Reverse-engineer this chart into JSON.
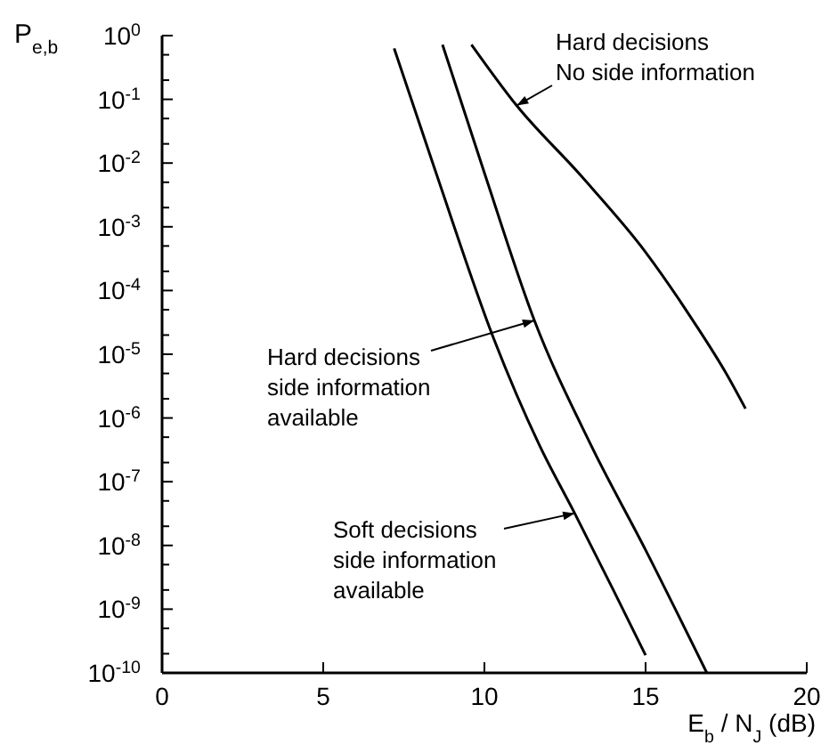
{
  "chart_data": {
    "type": "line",
    "log": "y",
    "xlabel": "E$_{b}$ / N$_{J}$ (dB)",
    "ylabel": "P$_{e,b}$",
    "xlim": [
      0,
      20
    ],
    "ylim": [
      1e-10,
      1
    ],
    "xticks": [
      0,
      5,
      10,
      15,
      20
    ],
    "yticks": [
      {
        "value": 1,
        "label": "10$^{0}$"
      },
      {
        "value": 0.1,
        "label": "10$^{-1}$"
      },
      {
        "value": 0.01,
        "label": "10$^{-2}$"
      },
      {
        "value": 0.001,
        "label": "10$^{-3}$"
      },
      {
        "value": 0.0001,
        "label": "10$^{-4}$"
      },
      {
        "value": 1e-05,
        "label": "10$^{-5}$"
      },
      {
        "value": 1e-06,
        "label": "10$^{-6}$"
      },
      {
        "value": 1e-07,
        "label": "10$^{-7}$"
      },
      {
        "value": 1e-08,
        "label": "10$^{-8}$"
      },
      {
        "value": 1e-09,
        "label": "10$^{-9}$"
      },
      {
        "value": 1e-10,
        "label": "10$^{-10}$"
      },
      {
        "value": 0.5,
        "label": null
      },
      {
        "value": 0.2,
        "label": null
      },
      {
        "value": 0.05,
        "label": null
      },
      {
        "value": 0.02,
        "label": null
      },
      {
        "value": 0.005,
        "label": null
      },
      {
        "value": 0.002,
        "label": null
      },
      {
        "value": 0.0005,
        "label": null
      },
      {
        "value": 0.0002,
        "label": null
      },
      {
        "value": 5e-05,
        "label": null
      },
      {
        "value": 2e-05,
        "label": null
      },
      {
        "value": 5e-06,
        "label": null
      },
      {
        "value": 2e-06,
        "label": null
      },
      {
        "value": 5e-07,
        "label": null
      },
      {
        "value": 2e-07,
        "label": null
      },
      {
        "value": 5e-08,
        "label": null
      },
      {
        "value": 2e-08,
        "label": null
      },
      {
        "value": 5e-09,
        "label": null
      },
      {
        "value": 2e-09,
        "label": null
      },
      {
        "value": 5e-10,
        "label": null
      },
      {
        "value": 2e-10,
        "label": null
      }
    ],
    "grid": false,
    "marker": "none",
    "line_style": "solid",
    "annotations": [
      {
        "text": "Soft decisions\nside information\navailable",
        "x": 12.8,
        "y": 3.2e-08
      },
      {
        "text": "Hard decisions\nside information\navailable",
        "x": 11.55,
        "y": 3.4e-05
      },
      {
        "text": "Hard decisions\nNo side information",
        "x": 11.0,
        "y": 0.08
      }
    ],
    "series": [
      {
        "color": "#000000",
        "x": [
          7.2,
          8.5,
          10.3,
          11.7,
          12.8,
          14.0,
          15.0
        ],
        "values": [
          0.63,
          0.007,
          1.7e-05,
          3.8e-07,
          3.2e-08,
          2e-09,
          1.9e-10
        ]
      },
      {
        "color": "#000000",
        "x": [
          8.7,
          10.0,
          11.55,
          13.3,
          15.0,
          16.9
        ],
        "values": [
          0.72,
          0.007,
          3.4e-05,
          3.8e-07,
          8.5e-09,
          1e-10
        ]
      },
      {
        "color": "#000000",
        "x": [
          9.6,
          11.0,
          13.0,
          15.0,
          16.5,
          17.5,
          18.1
        ],
        "values": [
          0.72,
          0.08,
          0.0063,
          0.0004,
          3.2e-05,
          5e-06,
          1.4e-06
        ]
      }
    ]
  }
}
